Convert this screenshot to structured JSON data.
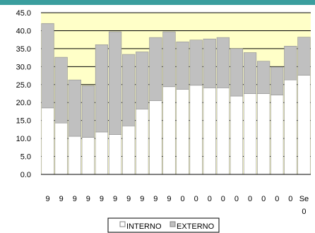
{
  "chart_data": {
    "type": "bar",
    "stacked": true,
    "title": "",
    "xlabel": "",
    "ylabel": "",
    "ylim": [
      0,
      45
    ],
    "y_ticks": [
      "0.0",
      "5.0",
      "10.0",
      "15.0",
      "20.0",
      "25.0",
      "30.0",
      "35.0",
      "40.0",
      "45.0"
    ],
    "categories": [
      "9",
      "9",
      "9",
      "9",
      "9",
      "9",
      "9",
      "9",
      "9",
      "9",
      "0",
      "0",
      "0",
      "0",
      "0",
      "0",
      "0",
      "0",
      "0",
      "Se"
    ],
    "category_second_line": [
      "",
      "",
      "",
      "",
      "",
      "",
      "",
      "",
      "",
      "",
      "",
      "",
      "",
      "",
      "",
      "",
      "",
      "",
      "",
      "0"
    ],
    "series": [
      {
        "name": "INTERNO",
        "color": "#ffffff",
        "values": [
          18.5,
          14.3,
          10.6,
          10.3,
          11.8,
          11.1,
          13.5,
          18.2,
          20.5,
          24.4,
          23.7,
          24.8,
          24.1,
          24.1,
          21.8,
          22.5,
          22.5,
          22.1,
          26.3,
          27.6
        ]
      },
      {
        "name": "EXTERNO",
        "color": "#c0c0c0",
        "values": [
          23.5,
          18.3,
          15.7,
          14.4,
          24.3,
          28.6,
          19.9,
          15.9,
          17.6,
          15.3,
          13.2,
          12.6,
          13.6,
          14.0,
          13.2,
          11.4,
          9.0,
          7.8,
          9.4,
          10.6
        ]
      }
    ],
    "grid": true,
    "legend_position": "bottom",
    "colors": {
      "top_bar": "#3a9e9e",
      "plot_background": "#ffffc8",
      "gridline": "#000000",
      "bar_outline": "#909090"
    }
  }
}
